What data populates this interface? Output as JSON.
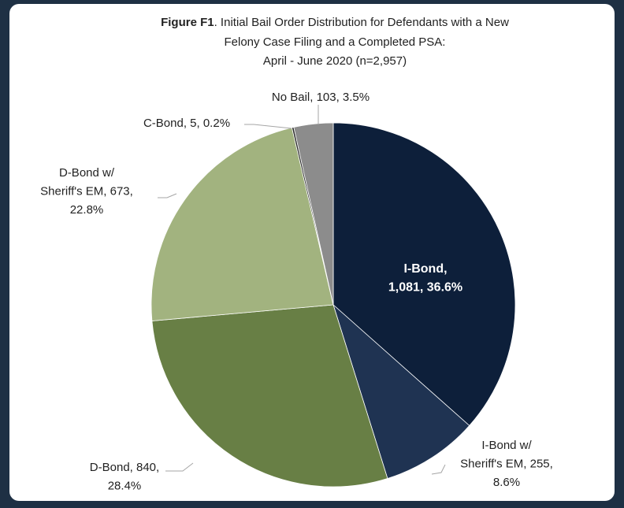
{
  "chart_data": {
    "type": "pie",
    "title": [
      "Figure F1",
      ". Initial Bail Order Distribution for Defendants with a New",
      "Felony Case Filing and a Completed PSA:",
      "April - June 2020 (n=2,957)"
    ],
    "values": [
      1081,
      255,
      840,
      673,
      5,
      103
    ],
    "colors": [
      "#0d1f3a",
      "#1f3352",
      "#687f45",
      "#a2b37f",
      "#262626",
      "#8c8c8c"
    ],
    "data_labels": [
      [
        "I-Bond,",
        "1,081, 36.6%"
      ],
      [
        "I-Bond w/",
        "Sheriff's EM, 255,",
        "8.6%"
      ],
      [
        "D-Bond, 840,",
        "28.4%"
      ],
      [
        "D-Bond w/",
        "Sheriff's EM, 673,",
        "22.8%"
      ],
      [
        "C-Bond, 5, 0.2%"
      ],
      [
        "No Bail, 103, 3.5%"
      ]
    ]
  }
}
